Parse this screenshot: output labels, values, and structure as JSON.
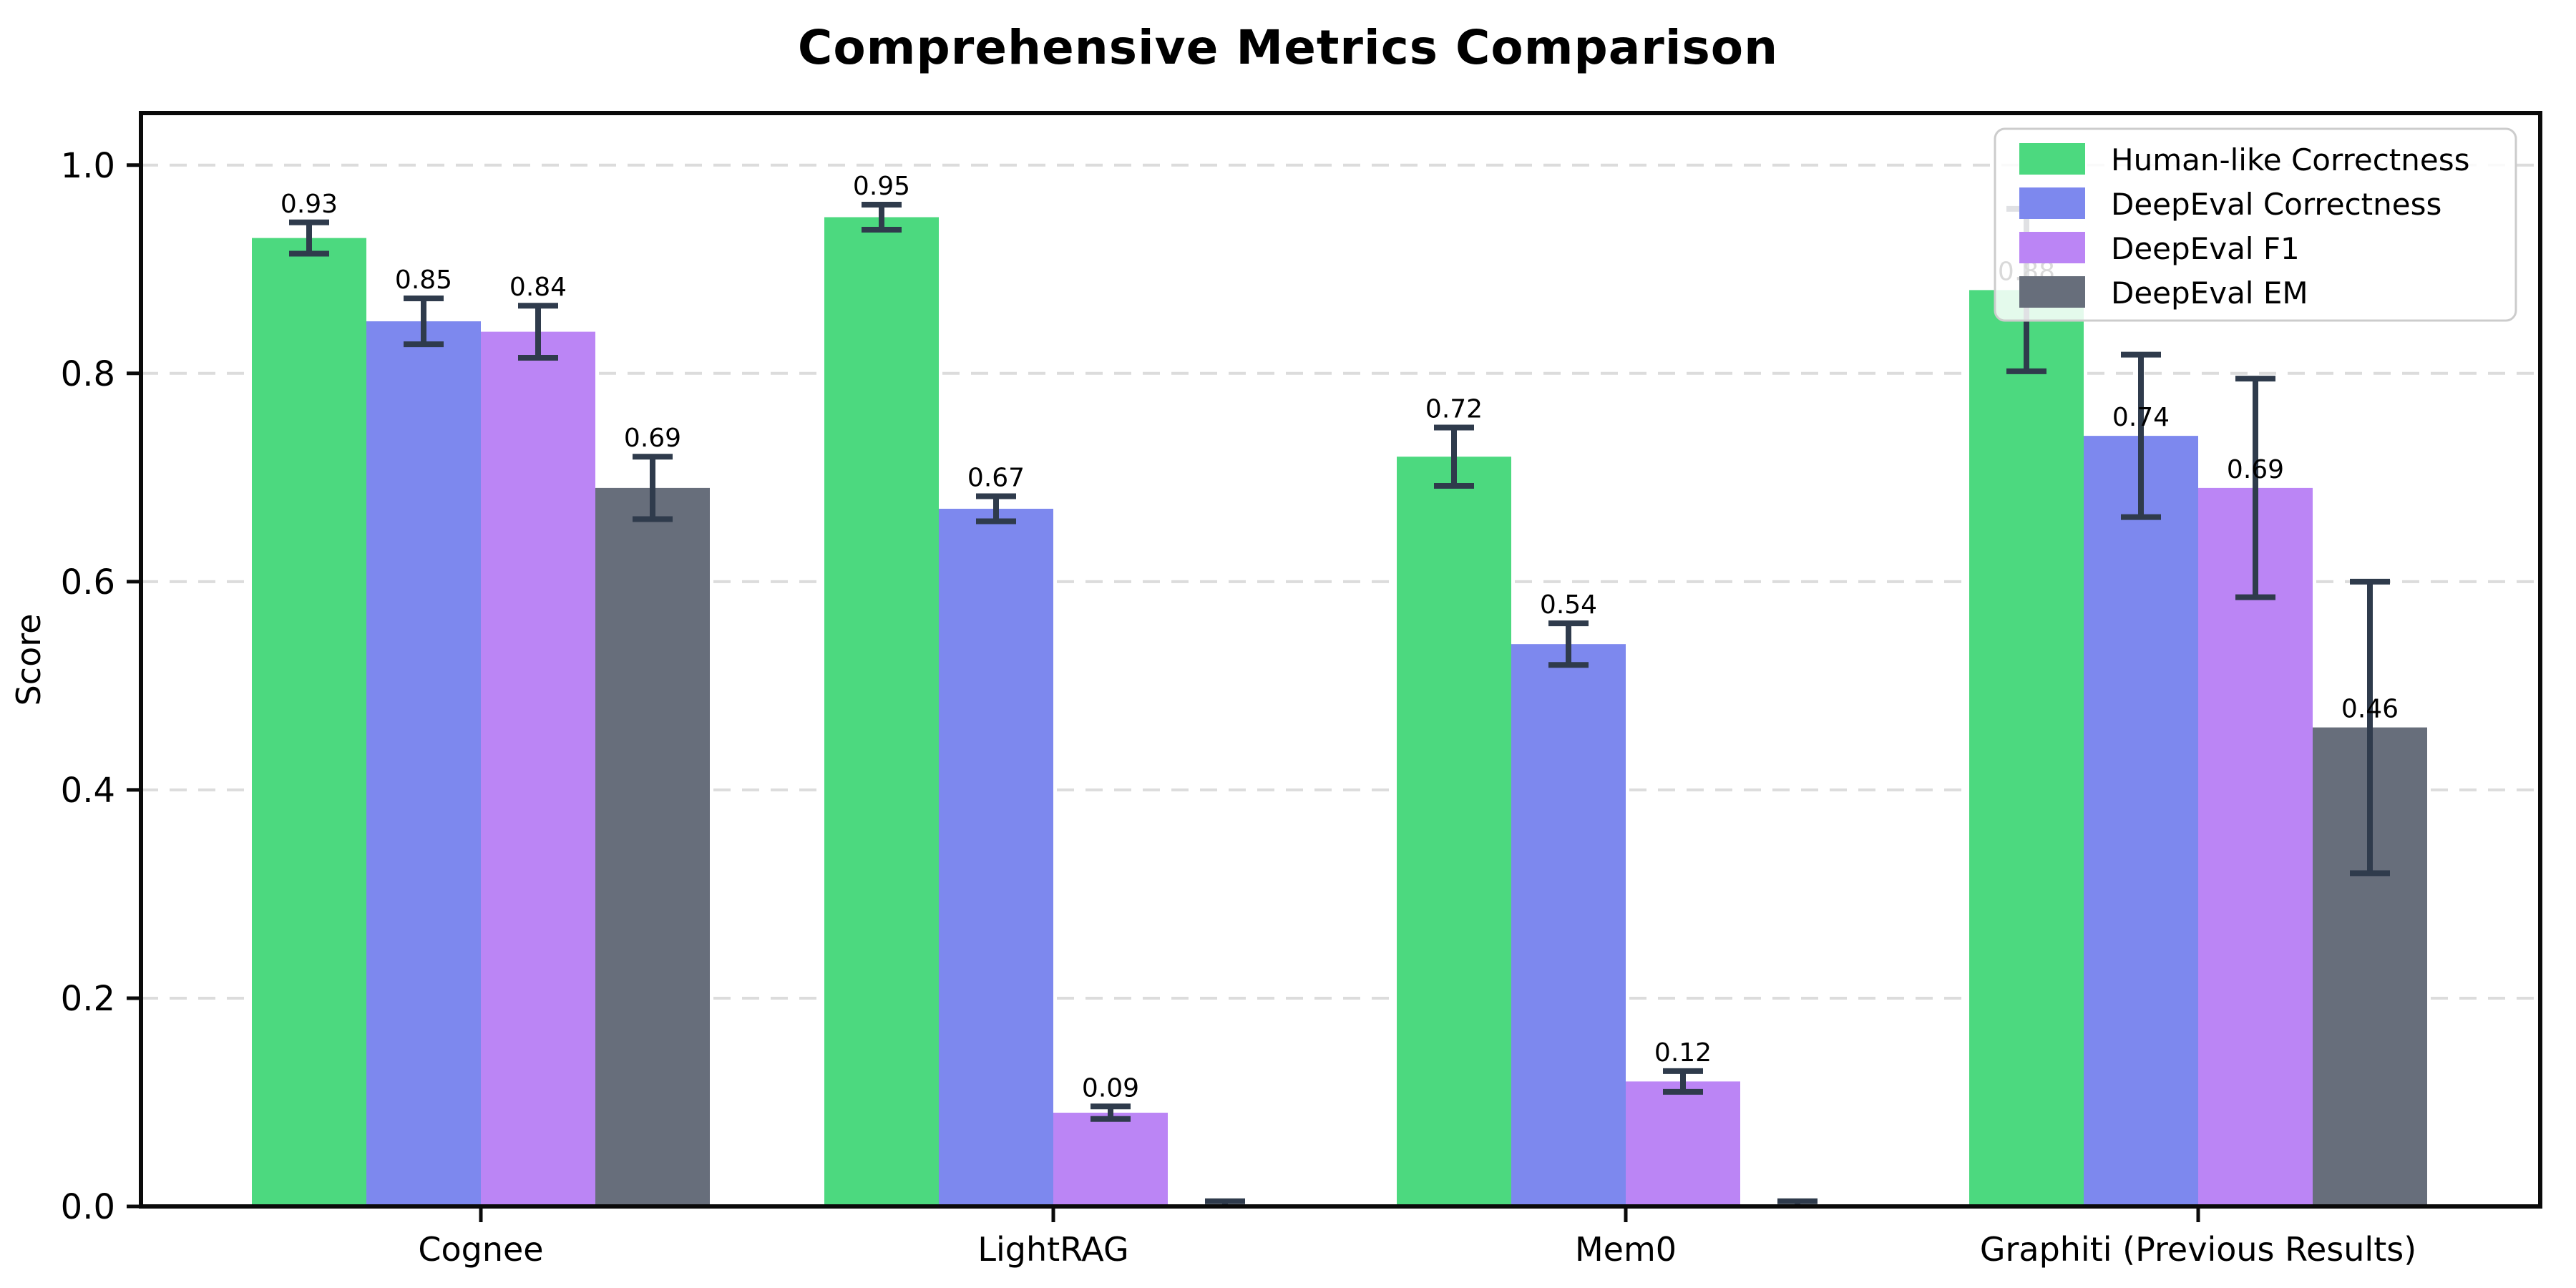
{
  "chart_data": {
    "type": "bar",
    "title": "Comprehensive Metrics Comparison",
    "ylabel": "Score",
    "xlabel": "",
    "categories": [
      "Cognee",
      "LightRAG",
      "Mem0",
      "Graphiti (Previous Results)"
    ],
    "series": [
      {
        "name": "Human-like Correctness",
        "color": "#4cd97f",
        "values": [
          0.93,
          0.95,
          0.72,
          0.88
        ],
        "errors": [
          0.015,
          0.012,
          0.028,
          0.078
        ],
        "data_labels": [
          "0.93",
          "0.95",
          "0.72",
          "0.88"
        ]
      },
      {
        "name": "DeepEval Correctness",
        "color": "#7d88ee",
        "values": [
          0.85,
          0.67,
          0.54,
          0.74
        ],
        "errors": [
          0.022,
          0.012,
          0.02,
          0.078
        ],
        "data_labels": [
          "0.85",
          "0.67",
          "0.54",
          "0.74"
        ]
      },
      {
        "name": "DeepEval F1",
        "color": "#bb85f5",
        "values": [
          0.84,
          0.09,
          0.12,
          0.69
        ],
        "errors": [
          0.025,
          0.006,
          0.01,
          0.105
        ],
        "data_labels": [
          "0.84",
          "0.09",
          "0.12",
          "0.69"
        ]
      },
      {
        "name": "DeepEval EM",
        "color": "#676e7b",
        "values": [
          0.69,
          0.0,
          0.0,
          0.46
        ],
        "errors": [
          0.03,
          0.005,
          0.005,
          0.14
        ],
        "data_labels": [
          "0.69",
          null,
          null,
          "0.46"
        ]
      }
    ],
    "yticks": [
      "0.0",
      "0.2",
      "0.4",
      "0.6",
      "0.8",
      "1.0"
    ],
    "ylim": [
      0,
      1.05
    ],
    "grid": "horizontal-dashed",
    "legend_position": "upper-right",
    "labels_above_error_by_category": [
      true,
      true,
      true,
      false
    ],
    "colors": {
      "error_bar": "#2f3b4c",
      "grid_line": "#dcdcdc",
      "axis": "#0a0a0a",
      "legend_border": "#cccccc",
      "legend_background": "#ffffff",
      "text": "#000000"
    }
  }
}
